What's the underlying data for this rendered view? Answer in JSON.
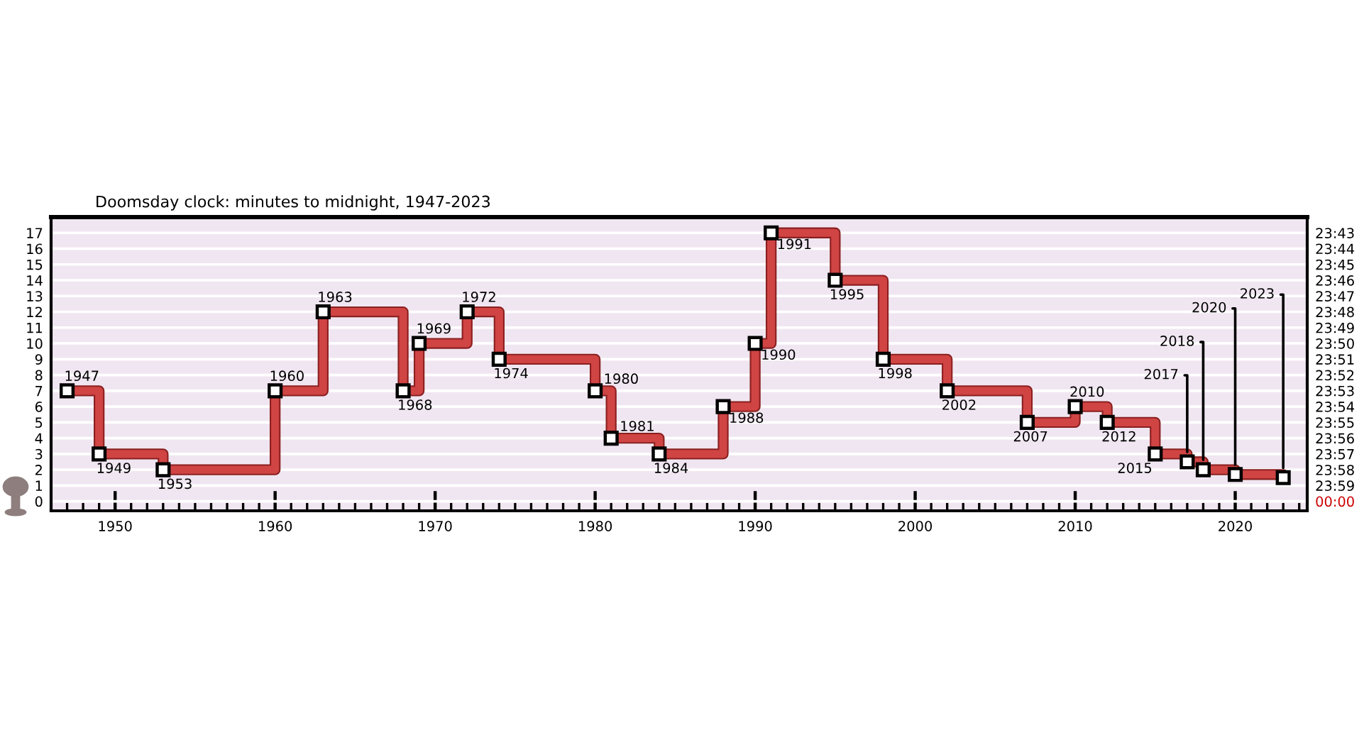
{
  "chart_data": {
    "type": "step",
    "title": "Doomsday clock: minutes to midnight, 1947-2023",
    "x": [
      1947,
      1949,
      1953,
      1960,
      1963,
      1968,
      1969,
      1972,
      1974,
      1980,
      1981,
      1984,
      1988,
      1990,
      1991,
      1995,
      1998,
      2002,
      2007,
      2010,
      2012,
      2015,
      2017,
      2018,
      2020,
      2023
    ],
    "series": [
      {
        "color": "#d04444",
        "values": [
          7,
          3,
          2,
          7,
          12,
          7,
          10,
          12,
          9,
          7,
          4,
          3,
          6,
          10,
          17,
          14,
          9,
          7,
          5,
          6,
          5,
          3,
          2.5,
          2,
          1.7,
          1.5
        ]
      }
    ],
    "xlim": [
      1946,
      2024.5
    ],
    "xticks": [
      1950,
      1960,
      1970,
      1980,
      1990,
      2000,
      2010,
      2020
    ],
    "ylim": [
      -0.6,
      18
    ],
    "yticks": [
      0,
      1,
      2,
      3,
      4,
      5,
      6,
      7,
      8,
      9,
      10,
      11,
      12,
      13,
      14,
      15,
      16,
      17
    ],
    "y2lim": [
      24.01,
      23.7
    ],
    "y2ticks": [
      {
        "value": 24,
        "label": "00:00"
      },
      {
        "value": 23.9833,
        "label": "23:59"
      },
      {
        "value": 23.9667,
        "label": "23:58"
      },
      {
        "value": 23.95,
        "label": "23:57"
      },
      {
        "value": 23.9333,
        "label": "23:56"
      },
      {
        "value": 23.9167,
        "label": "23:55"
      },
      {
        "value": 23.9,
        "label": "23:54"
      },
      {
        "value": 23.8833,
        "label": "23:53"
      },
      {
        "value": 23.8667,
        "label": "23:52"
      },
      {
        "value": 23.85,
        "label": "23:51"
      },
      {
        "value": 23.8333,
        "label": "23:50"
      },
      {
        "value": 23.8167,
        "label": "23:49"
      },
      {
        "value": 23.8,
        "label": "23:48"
      },
      {
        "value": 23.7833,
        "label": "23:47"
      },
      {
        "value": 23.7667,
        "label": "23:46"
      },
      {
        "value": 23.75,
        "label": "23:45"
      },
      {
        "value": 23.7333,
        "label": "23:44"
      },
      {
        "value": 23.7167,
        "label": "23:43"
      }
    ],
    "grid": "y",
    "marker": "square",
    "line_style": "solid",
    "annotations": [
      {
        "text": "1947",
        "x": 1947,
        "y": 7
      },
      {
        "text": "1949",
        "x": 1949,
        "y": 3
      },
      {
        "text": "1953",
        "x": 1953,
        "y": 2
      },
      {
        "text": "1960",
        "x": 1960,
        "y": 7
      },
      {
        "text": "1963",
        "x": 1963,
        "y": 12
      },
      {
        "text": "1968",
        "x": 1968,
        "y": 7
      },
      {
        "text": "1969",
        "x": 1969,
        "y": 10
      },
      {
        "text": "1972",
        "x": 1972,
        "y": 12
      },
      {
        "text": "1974",
        "x": 1974,
        "y": 9
      },
      {
        "text": "1980",
        "x": 1980,
        "y": 7
      },
      {
        "text": "1981",
        "x": 1981,
        "y": 4
      },
      {
        "text": "1984",
        "x": 1984,
        "y": 3
      },
      {
        "text": "1988",
        "x": 1988,
        "y": 6
      },
      {
        "text": "1990",
        "x": 1990,
        "y": 10
      },
      {
        "text": "1991",
        "x": 1991,
        "y": 17
      },
      {
        "text": "1995",
        "x": 1995,
        "y": 14
      },
      {
        "text": "1998",
        "x": 1998,
        "y": 9
      },
      {
        "text": "2002",
        "x": 2002,
        "y": 7
      },
      {
        "text": "2007",
        "x": 2007,
        "y": 5
      },
      {
        "text": "2010",
        "x": 2010,
        "y": 6
      },
      {
        "text": "2012",
        "x": 2012,
        "y": 5
      },
      {
        "text": "2015",
        "x": 2015,
        "y": 3
      },
      {
        "text": "2017",
        "x": 2017,
        "y": 2.5
      },
      {
        "text": "2018",
        "x": 2018,
        "y": 2
      },
      {
        "text": "2020",
        "x": 2020,
        "y": 1.7
      },
      {
        "text": "2023",
        "x": 2023,
        "y": 1.5
      }
    ]
  }
}
